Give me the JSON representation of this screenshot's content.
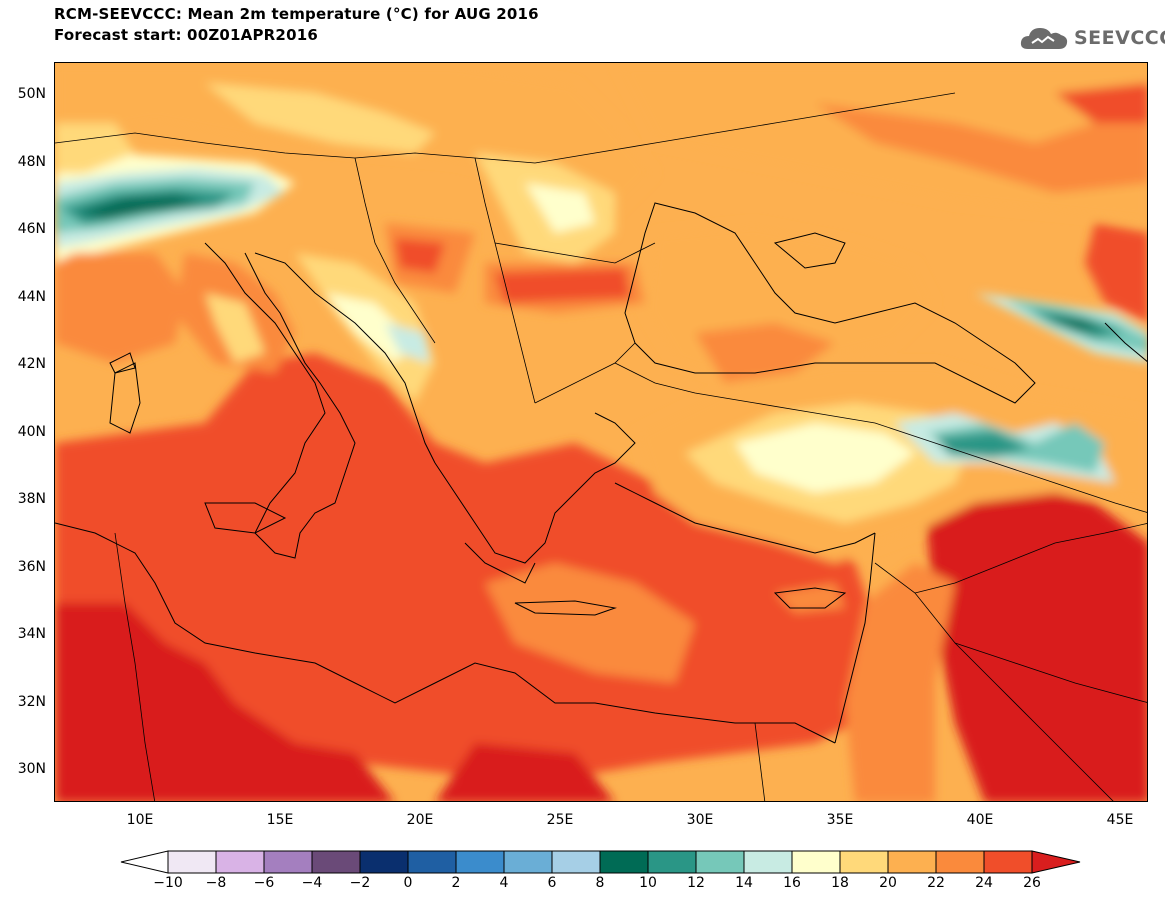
{
  "header": {
    "title": "RCM-SEEVCCC: Mean 2m temperature (°C) for AUG 2016",
    "subtitle": "Forecast start: 00Z01APR2016"
  },
  "logo": {
    "text": "SEEVCCC",
    "icon": "cloud-icon",
    "color": "#6b6b6b"
  },
  "map": {
    "lon_range": [
      7,
      46
    ],
    "lat_range": [
      29,
      51
    ],
    "lat_ticks": [
      "50N",
      "48N",
      "46N",
      "44N",
      "42N",
      "40N",
      "38N",
      "36N",
      "34N",
      "32N",
      "30N"
    ],
    "lon_ticks": [
      "10E",
      "15E",
      "20E",
      "25E",
      "30E",
      "35E",
      "40E",
      "45E"
    ]
  },
  "colorbar": {
    "labels": [
      "−10",
      "−8",
      "−6",
      "−4",
      "−2",
      "0",
      "2",
      "4",
      "6",
      "8",
      "10",
      "12",
      "14",
      "16",
      "18",
      "20",
      "22",
      "24",
      "26"
    ],
    "colors": [
      "#f0e8f4",
      "#d9b3e6",
      "#a47fbf",
      "#6a4a78",
      "#0a2f6e",
      "#1f5fa3",
      "#3b8ccc",
      "#6aaed6",
      "#a6cfe6",
      "#006b55",
      "#2a9686",
      "#76c8b9",
      "#c8ebe3",
      "#ffffcc",
      "#ffd97a",
      "#fdb050",
      "#fa8a3c",
      "#f04e2a"
    ],
    "under_color": "#ffffff",
    "over_color": "#d91e1e"
  }
}
